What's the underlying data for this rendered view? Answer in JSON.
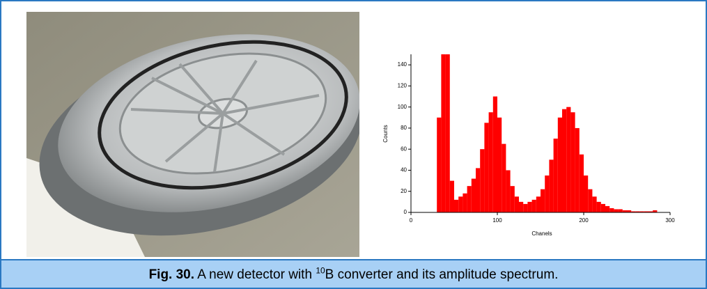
{
  "figure": {
    "caption": {
      "label": "Fig. 30.",
      "text_before": "A new detector with",
      "superscript": "10",
      "text_after": "B converter and its amplitude spectrum."
    }
  },
  "chart_data": {
    "type": "histogram",
    "x_label": "Chanels",
    "y_label": "Counts",
    "color": "#ff0000",
    "bins": [
      30,
      35,
      40,
      45,
      50,
      55,
      60,
      65,
      70,
      75,
      80,
      85,
      90,
      95,
      100,
      105,
      110,
      115,
      120,
      125,
      130,
      135,
      140,
      145,
      150,
      155,
      160,
      165,
      170,
      175,
      180,
      185,
      190,
      195,
      200,
      205,
      210,
      215,
      220,
      225,
      230,
      235,
      240,
      245,
      250,
      255,
      260,
      265,
      270,
      275,
      280,
      285,
      290
    ],
    "values": [
      90,
      150,
      150,
      30,
      12,
      15,
      18,
      25,
      32,
      42,
      60,
      85,
      95,
      110,
      90,
      65,
      40,
      25,
      15,
      10,
      8,
      10,
      12,
      15,
      22,
      35,
      50,
      70,
      90,
      98,
      100,
      95,
      80,
      55,
      35,
      22,
      15,
      10,
      8,
      6,
      4,
      3,
      3,
      2,
      2,
      1,
      1,
      1,
      1,
      1,
      2,
      0
    ],
    "xlim": [
      0,
      300
    ],
    "ylim": [
      0,
      150
    ],
    "xticks": [
      0,
      100,
      200,
      300
    ],
    "yticks": [
      0,
      20,
      40,
      60,
      80,
      100,
      120,
      140
    ]
  }
}
